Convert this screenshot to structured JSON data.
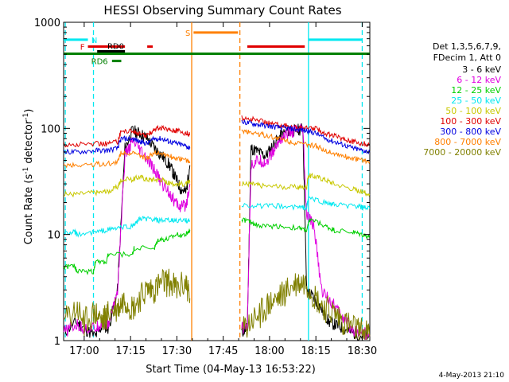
{
  "title": "HESSI Observing Summary Count Rates",
  "footer_date": "4-May-2013 21:10",
  "legend_header": [
    "Det 1,3,5,6,7,9,",
    "FDecim 1, Att 0"
  ],
  "chart_data": {
    "type": "line",
    "title": "HESSI Observing Summary Count Rates",
    "xlabel": "Start Time (04-May-13 16:53:22)",
    "ylabel": "Count Rate (s⁻¹ detector⁻¹)",
    "ylabel_main": "Count Rate (s",
    "ylabel_mid": " detector",
    "ylabel_end": ")",
    "ylabel_sup": "-1",
    "y_scale": "log",
    "ylim": [
      1,
      1000
    ],
    "xlim": [
      16.889,
      18.541
    ],
    "x_ticks": [
      "17:00",
      "17:15",
      "17:30",
      "17:45",
      "18:00",
      "18:15",
      "18:30"
    ],
    "x_tick_hours": [
      17.0,
      17.25,
      17.5,
      17.75,
      18.0,
      18.25,
      18.5
    ],
    "y_ticks": [
      "1",
      "10",
      "100",
      "1000"
    ],
    "y_tick_values": [
      1,
      10,
      100,
      1000
    ],
    "grid": false,
    "legend_position": "right",
    "series": [
      {
        "name": "3 - 6 keV",
        "color": "#000000",
        "segments": [
          {
            "x": [
              16.89,
              16.96,
              17.0,
              17.06,
              17.1,
              17.13,
              17.18,
              17.22,
              17.26,
              17.3,
              17.34,
              17.38,
              17.42,
              17.46,
              17.49,
              17.52,
              17.55,
              17.57
            ],
            "y": [
              1.2,
              1.5,
              1.3,
              1.1,
              1.4,
              1.3,
              3.0,
              65,
              95,
              90,
              80,
              65,
              55,
              45,
              35,
              27,
              25,
              45
            ]
          },
          {
            "x": [
              17.85,
              17.88,
              17.9,
              17.94,
              17.98,
              18.02,
              18.06,
              18.1,
              18.14,
              18.18,
              18.2,
              18.24,
              18.28,
              18.32,
              18.36,
              18.4,
              18.44,
              18.5,
              18.54
            ],
            "y": [
              1.2,
              1.3,
              65,
              60,
              55,
              70,
              85,
              95,
              95,
              100,
              3,
              2.5,
              2,
              1.5,
              1.4,
              1.3,
              1.2,
              1.1,
              1.1
            ]
          }
        ]
      },
      {
        "name": "6 - 12 keV",
        "color": "#e000e0",
        "segments": [
          {
            "x": [
              16.89,
              16.96,
              17.0,
              17.06,
              17.1,
              17.13,
              17.18,
              17.22,
              17.26,
              17.3,
              17.34,
              17.38,
              17.42,
              17.46,
              17.49,
              17.52,
              17.55,
              17.57
            ],
            "y": [
              1.2,
              1.4,
              1.3,
              1.3,
              1.5,
              1.4,
              3.0,
              55,
              75,
              62,
              50,
              40,
              30,
              25,
              20,
              18,
              19,
              30
            ]
          },
          {
            "x": [
              17.85,
              17.88,
              17.9,
              17.94,
              17.98,
              18.02,
              18.06,
              18.1,
              18.14,
              18.18,
              18.2,
              18.24,
              18.28,
              18.32,
              18.36,
              18.4,
              18.44,
              18.5,
              18.54
            ],
            "y": [
              1.3,
              1.4,
              45,
              50,
              48,
              60,
              80,
              90,
              95,
              95,
              15,
              12,
              3,
              2.5,
              2,
              1.6,
              1.3,
              1.2,
              1.1
            ]
          }
        ]
      },
      {
        "name": "12 - 25 keV",
        "color": "#00d000",
        "segments": [
          {
            "x": [
              16.89,
              16.95,
              16.96,
              17.05,
              17.06,
              17.12,
              17.13,
              17.26,
              17.27,
              17.38,
              17.4,
              17.45,
              17.5,
              17.55,
              17.57
            ],
            "y": [
              5,
              5,
              4.5,
              4.5,
              5.5,
              5.5,
              6.5,
              6.5,
              7.5,
              7.5,
              9,
              9,
              10,
              10,
              11
            ]
          },
          {
            "x": [
              17.85,
              17.9,
              17.95,
              18.05,
              18.15,
              18.2,
              18.22,
              18.3,
              18.35,
              18.45,
              18.5,
              18.54
            ],
            "y": [
              14,
              13,
              12,
              12,
              11.5,
              11,
              14,
              12,
              11,
              10.5,
              10,
              9.5
            ]
          }
        ]
      },
      {
        "name": "25 - 50 keV",
        "color": "#00e8f0",
        "segments": [
          {
            "x": [
              16.89,
              16.95,
              16.96,
              17.06,
              17.12,
              17.18,
              17.26,
              17.3,
              17.35,
              17.4,
              17.45,
              17.5,
              17.55,
              17.57
            ],
            "y": [
              10.5,
              10.5,
              10,
              10.5,
              11,
              11.5,
              12,
              14,
              14,
              13.5,
              13.5,
              13.5,
              13.5,
              13.5
            ]
          },
          {
            "x": [
              17.85,
              17.95,
              18.05,
              18.15,
              18.2,
              18.21,
              18.3,
              18.35,
              18.45,
              18.5,
              18.54
            ],
            "y": [
              19,
              18.5,
              18.5,
              18,
              18,
              22,
              20,
              19,
              18.5,
              18,
              17.5
            ]
          }
        ]
      },
      {
        "name": "50 - 100 keV",
        "color": "#c8c800",
        "segments": [
          {
            "x": [
              16.89,
              16.96,
              17.06,
              17.12,
              17.18,
              17.2,
              17.26,
              17.3,
              17.34,
              17.38,
              17.42,
              17.46,
              17.5,
              17.55,
              17.57
            ],
            "y": [
              24,
              24,
              25,
              25,
              28,
              33,
              33,
              35,
              33,
              33,
              33,
              30,
              30,
              30,
              31
            ]
          },
          {
            "x": [
              17.85,
              17.9,
              17.95,
              18.05,
              18.15,
              18.2,
              18.21,
              18.25,
              18.3,
              18.35,
              18.45,
              18.5,
              18.54
            ],
            "y": [
              30,
              30,
              29,
              28,
              28,
              28,
              36,
              35,
              33,
              30,
              27,
              25,
              24
            ]
          }
        ]
      },
      {
        "name": "100 - 300 keV",
        "color": "#e00000",
        "segments": [
          {
            "x": [
              16.89,
              16.96,
              17.06,
              17.12,
              17.18,
              17.2,
              17.26,
              17.3,
              17.34,
              17.38,
              17.42,
              17.46,
              17.5,
              17.55,
              17.57
            ],
            "y": [
              70,
              70,
              72,
              72,
              75,
              95,
              95,
              88,
              85,
              100,
              100,
              98,
              95,
              90,
              88
            ]
          },
          {
            "x": [
              17.85,
              17.9,
              17.95,
              18.0,
              18.05,
              18.1,
              18.15,
              18.2,
              18.25,
              18.3,
              18.35,
              18.4,
              18.45,
              18.5,
              18.54
            ],
            "y": [
              125,
              122,
              118,
              112,
              108,
              105,
              102,
              100,
              100,
              90,
              85,
              80,
              75,
              72,
              70
            ]
          }
        ]
      },
      {
        "name": "300 - 800 keV",
        "color": "#0000e0",
        "segments": [
          {
            "x": [
              16.89,
              16.96,
              17.06,
              17.12,
              17.18,
              17.2,
              17.26,
              17.3,
              17.34,
              17.38,
              17.42,
              17.46,
              17.5,
              17.55,
              17.57
            ],
            "y": [
              60,
              60,
              62,
              62,
              65,
              80,
              80,
              75,
              72,
              80,
              80,
              75,
              72,
              68,
              65
            ]
          },
          {
            "x": [
              17.85,
              17.9,
              17.95,
              18.0,
              18.05,
              18.1,
              18.15,
              18.2,
              18.25,
              18.3,
              18.35,
              18.4,
              18.45,
              18.5,
              18.54
            ],
            "y": [
              115,
              112,
              108,
              105,
              102,
              100,
              98,
              95,
              90,
              80,
              75,
              70,
              65,
              62,
              60
            ]
          }
        ]
      },
      {
        "name": "800 - 7000 keV",
        "color": "#ff8000",
        "segments": [
          {
            "x": [
              16.89,
              16.96,
              17.06,
              17.12,
              17.18,
              17.2,
              17.26,
              17.3,
              17.34,
              17.38,
              17.42,
              17.46,
              17.5,
              17.55,
              17.57
            ],
            "y": [
              45,
              45,
              46,
              46,
              48,
              60,
              58,
              55,
              52,
              60,
              58,
              55,
              52,
              50,
              48
            ]
          },
          {
            "x": [
              17.85,
              17.9,
              17.95,
              18.0,
              18.05,
              18.1,
              18.15,
              18.2,
              18.25,
              18.3,
              18.35,
              18.4,
              18.45,
              18.5,
              18.54
            ],
            "y": [
              95,
              92,
              88,
              84,
              80,
              76,
              72,
              70,
              68,
              62,
              58,
              55,
              52,
              50,
              48
            ]
          }
        ]
      },
      {
        "name": "7000 - 20000 keV",
        "color": "#808000",
        "segments": [
          {
            "x": [
              16.89,
              16.96,
              17.0,
              17.06,
              17.1,
              17.13,
              17.18,
              17.22,
              17.26,
              17.3,
              17.34,
              17.38,
              17.42,
              17.46,
              17.5,
              17.55,
              17.57
            ],
            "y": [
              1.5,
              2.0,
              1.5,
              1.8,
              1.5,
              1.8,
              2.0,
              2.5,
              2.0,
              2.5,
              3.0,
              3.0,
              3.5,
              3.5,
              3.0,
              3.5,
              2.5
            ]
          },
          {
            "x": [
              17.85,
              17.9,
              17.95,
              18.0,
              18.05,
              18.1,
              18.15,
              18.2,
              18.25,
              18.3,
              18.35,
              18.4,
              18.45,
              18.5,
              18.54
            ],
            "y": [
              1.2,
              1.5,
              1.8,
              2.2,
              2.5,
              3.0,
              3.5,
              3.5,
              2.5,
              2.0,
              1.8,
              1.5,
              1.3,
              1.2,
              1.1
            ]
          }
        ]
      }
    ],
    "flag_bars": [
      {
        "label": "N",
        "color": "#00e8f0",
        "x_start": 16.889,
        "x_end": 17.02,
        "level": 685,
        "label_x": 17.03,
        "label_pos": "right"
      },
      {
        "label": "",
        "color": "#00e8f0",
        "x_start": 18.21,
        "x_end": 18.5,
        "level": 685,
        "label_x": 18.21,
        "label_pos": "none"
      },
      {
        "label": "F",
        "color": "#e00000",
        "x_start": 17.02,
        "x_end": 17.22,
        "level": 590,
        "label_x": 17.02,
        "label_pos": "left"
      },
      {
        "label": "",
        "color": "#e00000",
        "x_start": 17.34,
        "x_end": 17.37,
        "level": 590,
        "label_x": 17.34,
        "label_pos": "none"
      },
      {
        "label": "",
        "color": "#e00000",
        "x_start": 17.88,
        "x_end": 18.19,
        "level": 590,
        "label_x": 17.88,
        "label_pos": "none"
      },
      {
        "label": "S",
        "color": "#ff8000",
        "x_start": 17.59,
        "x_end": 17.83,
        "level": 800,
        "label_x": 17.59,
        "label_pos": "left"
      },
      {
        "label": "",
        "color": "#008000",
        "x_start": 16.889,
        "x_end": 18.541,
        "level": 505,
        "label_x": 16.889,
        "label_pos": "none"
      },
      {
        "label": "RD0",
        "color": "#000000",
        "x_start": 17.07,
        "x_end": 17.22,
        "level": 532,
        "label_x": 17.17,
        "label_pos": "above"
      },
      {
        "label": "RD6",
        "color": "#008000",
        "x_start": 17.15,
        "x_end": 17.2,
        "level": 432,
        "label_x": 17.145,
        "label_pos": "left"
      }
    ],
    "vlines": [
      {
        "x": 16.898,
        "color": "#00e8f0",
        "style": "dashed"
      },
      {
        "x": 17.05,
        "color": "#00e8f0",
        "style": "dashed"
      },
      {
        "x": 17.58,
        "color": "#ff8000",
        "style": "solid"
      },
      {
        "x": 17.84,
        "color": "#ff8000",
        "style": "dashed"
      },
      {
        "x": 18.21,
        "color": "#00e8f0",
        "style": "solid"
      },
      {
        "x": 18.5,
        "color": "#00e8f0",
        "style": "dashed"
      }
    ]
  }
}
